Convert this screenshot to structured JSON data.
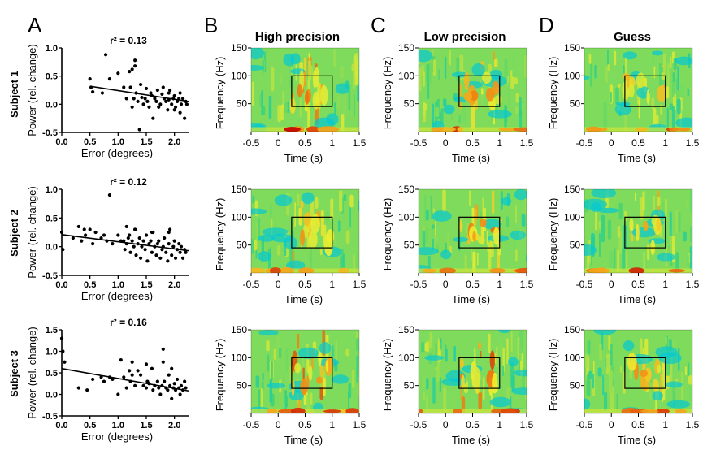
{
  "panel_letters": [
    "A",
    "B",
    "C",
    "D"
  ],
  "column_titles": [
    "High precision",
    "Low precision",
    "Guess"
  ],
  "subjects": [
    "Subject 1",
    "Subject 2",
    "Subject 3"
  ],
  "colors": {
    "low": "#00c8d8",
    "mid": "#f0ef30",
    "high": "#c40000"
  },
  "chart_data": [
    {
      "type": "scatter",
      "subject": "Subject 1",
      "annotation": "r² = 0.13",
      "xlabel": "Error (degrees)",
      "ylabel": "Power (rel. change)",
      "xlim": [
        0.0,
        2.25
      ],
      "ylim": [
        -0.5,
        1.0
      ],
      "xticks": [
        "0.0",
        "0.5",
        "1.0",
        "1.5",
        "2.0"
      ],
      "yticks": [
        "-0.5",
        "0.0",
        "0.5",
        "1.0"
      ],
      "fit_line": [
        [
          0.5,
          0.32
        ],
        [
          2.25,
          0.05
        ]
      ],
      "x": [
        0.5,
        0.52,
        0.55,
        0.72,
        0.78,
        0.85,
        1.0,
        1.1,
        1.15,
        1.2,
        1.22,
        1.25,
        1.28,
        1.3,
        1.32,
        1.35,
        1.38,
        1.4,
        1.42,
        1.45,
        1.48,
        1.5,
        1.52,
        1.55,
        1.58,
        1.6,
        1.62,
        1.65,
        1.68,
        1.7,
        1.72,
        1.75,
        1.78,
        1.8,
        1.82,
        1.85,
        1.88,
        1.9,
        1.92,
        1.95,
        1.98,
        2.0,
        2.02,
        2.05,
        2.08,
        2.1,
        2.12,
        2.15,
        2.18,
        2.2,
        2.22,
        1.25,
        1.3,
        1.9,
        2.0,
        2.1
      ],
      "y": [
        0.45,
        0.3,
        0.22,
        0.2,
        0.88,
        0.45,
        0.55,
        0.3,
        0.1,
        0.58,
        0.3,
        -0.05,
        0.1,
        0.78,
        0.2,
        0.05,
        -0.45,
        0.35,
        0.12,
        0.0,
        0.1,
        0.28,
        0.05,
        -0.05,
        0.2,
        0.15,
        -0.25,
        0.1,
        0.05,
        0.25,
        -0.05,
        0.0,
        0.18,
        0.3,
        0.1,
        0.05,
        -0.1,
        0.2,
        0.25,
        0.0,
        0.1,
        0.15,
        -0.05,
        0.05,
        0.1,
        -0.15,
        0.0,
        0.1,
        -0.25,
        0.05,
        0.0,
        0.62,
        0.68,
        0.08,
        -0.1,
        0.2
      ]
    },
    {
      "type": "scatter",
      "subject": "Subject 2",
      "annotation": "r² = 0.12",
      "xlabel": "Error (degrees)",
      "ylabel": "Power (rel. change)",
      "xlim": [
        0.0,
        2.25
      ],
      "ylim": [
        -0.5,
        1.0
      ],
      "xticks": [
        "0.0",
        "0.5",
        "1.0",
        "1.5",
        "2.0"
      ],
      "yticks": [
        "-0.5",
        "0.0",
        "0.5",
        "1.0"
      ],
      "fit_line": [
        [
          0.0,
          0.21
        ],
        [
          2.25,
          -0.07
        ]
      ],
      "x": [
        0.0,
        0.02,
        0.2,
        0.3,
        0.35,
        0.4,
        0.42,
        0.5,
        0.55,
        0.6,
        0.7,
        0.75,
        0.8,
        0.85,
        0.9,
        1.0,
        1.05,
        1.1,
        1.12,
        1.15,
        1.18,
        1.2,
        1.22,
        1.25,
        1.28,
        1.3,
        1.32,
        1.35,
        1.38,
        1.4,
        1.42,
        1.45,
        1.48,
        1.5,
        1.52,
        1.55,
        1.58,
        1.6,
        1.62,
        1.65,
        1.68,
        1.7,
        1.72,
        1.75,
        1.78,
        1.8,
        1.82,
        1.85,
        1.88,
        1.9,
        1.92,
        1.95,
        1.98,
        2.0,
        2.02,
        2.05,
        2.08,
        2.1,
        2.12,
        2.15,
        2.18,
        2.2,
        1.15,
        1.3,
        1.6,
        1.9
      ],
      "y": [
        0.25,
        -0.05,
        0.15,
        0.35,
        0.1,
        0.3,
        0.2,
        0.3,
        0.05,
        0.25,
        0.15,
        0.2,
        0.1,
        0.9,
        0.05,
        0.2,
        0.1,
        0.1,
        -0.05,
        0.05,
        0.15,
        0.2,
        -0.1,
        0.1,
        0.0,
        0.3,
        -0.15,
        0.05,
        0.15,
        -0.2,
        0.0,
        0.1,
        -0.05,
        0.2,
        -0.25,
        0.05,
        0.1,
        -0.1,
        0.25,
        0.0,
        -0.15,
        0.05,
        0.1,
        -0.2,
        -0.05,
        0.0,
        0.15,
        -0.1,
        -0.25,
        0.05,
        0.3,
        -0.15,
        0.0,
        0.1,
        -0.2,
        -0.05,
        0.05,
        -0.1,
        0.0,
        -0.2,
        -0.05,
        -0.1,
        0.35,
        0.3,
        0.25,
        0.25
      ]
    },
    {
      "type": "scatter",
      "subject": "Subject 3",
      "annotation": "r² = 0.16",
      "xlabel": "Error (degrees)",
      "ylabel": "Power (rel. change)",
      "xlim": [
        0.0,
        2.25
      ],
      "ylim": [
        -0.5,
        1.5
      ],
      "xticks": [
        "0.0",
        "0.5",
        "1.0",
        "1.5",
        "2.0"
      ],
      "yticks": [
        "-0.5",
        "0.0",
        "0.5",
        "1.0",
        "1.5"
      ],
      "fit_line": [
        [
          0.0,
          0.6
        ],
        [
          2.25,
          0.08
        ]
      ],
      "x": [
        0.0,
        0.02,
        0.05,
        0.3,
        0.45,
        0.55,
        0.7,
        0.75,
        0.85,
        0.9,
        1.0,
        1.05,
        1.1,
        1.15,
        1.2,
        1.22,
        1.25,
        1.3,
        1.35,
        1.4,
        1.45,
        1.5,
        1.52,
        1.55,
        1.6,
        1.62,
        1.65,
        1.7,
        1.72,
        1.75,
        1.78,
        1.8,
        1.82,
        1.85,
        1.88,
        1.9,
        1.92,
        1.95,
        1.98,
        2.0,
        2.02,
        2.05,
        2.08,
        2.1,
        2.12,
        2.15,
        2.18,
        2.2,
        1.25,
        1.5,
        1.8,
        1.95
      ],
      "y": [
        1.3,
        1.0,
        0.75,
        0.15,
        0.1,
        0.35,
        0.4,
        0.3,
        0.4,
        0.35,
        0.0,
        0.8,
        0.4,
        0.15,
        0.55,
        0.3,
        0.45,
        0.2,
        0.55,
        0.45,
        0.2,
        0.15,
        0.3,
        0.25,
        0.6,
        0.1,
        0.2,
        0.3,
        0.15,
        0.0,
        0.2,
        1.05,
        0.3,
        0.15,
        0.1,
        0.45,
        0.2,
        -0.1,
        0.15,
        0.25,
        0.1,
        0.35,
        0.15,
        0.0,
        0.2,
        0.1,
        0.3,
        0.15,
        0.75,
        0.7,
        0.75,
        0.6
      ]
    },
    {
      "type": "heatmap",
      "layout": "grid 3 rows (subjects) x 3 columns (conditions)",
      "xlabel": "Time (s)",
      "ylabel": "Frequency (Hz)",
      "xlim": [
        -0.5,
        1.5
      ],
      "ylim": [
        0,
        150
      ],
      "xticks": [
        "-0.5",
        "0",
        "0.5",
        "1",
        "1.5"
      ],
      "yticks": [
        "50",
        "100",
        "150"
      ],
      "roi_box": {
        "time": [
          0.25,
          1.0
        ],
        "freq": [
          45,
          100
        ]
      },
      "colormap": "cyan-green-yellow-red",
      "roi_level": [
        [
          0.72,
          0.55,
          0.52
        ],
        [
          0.6,
          0.58,
          0.52
        ],
        [
          0.8,
          0.72,
          0.55
        ]
      ]
    }
  ]
}
